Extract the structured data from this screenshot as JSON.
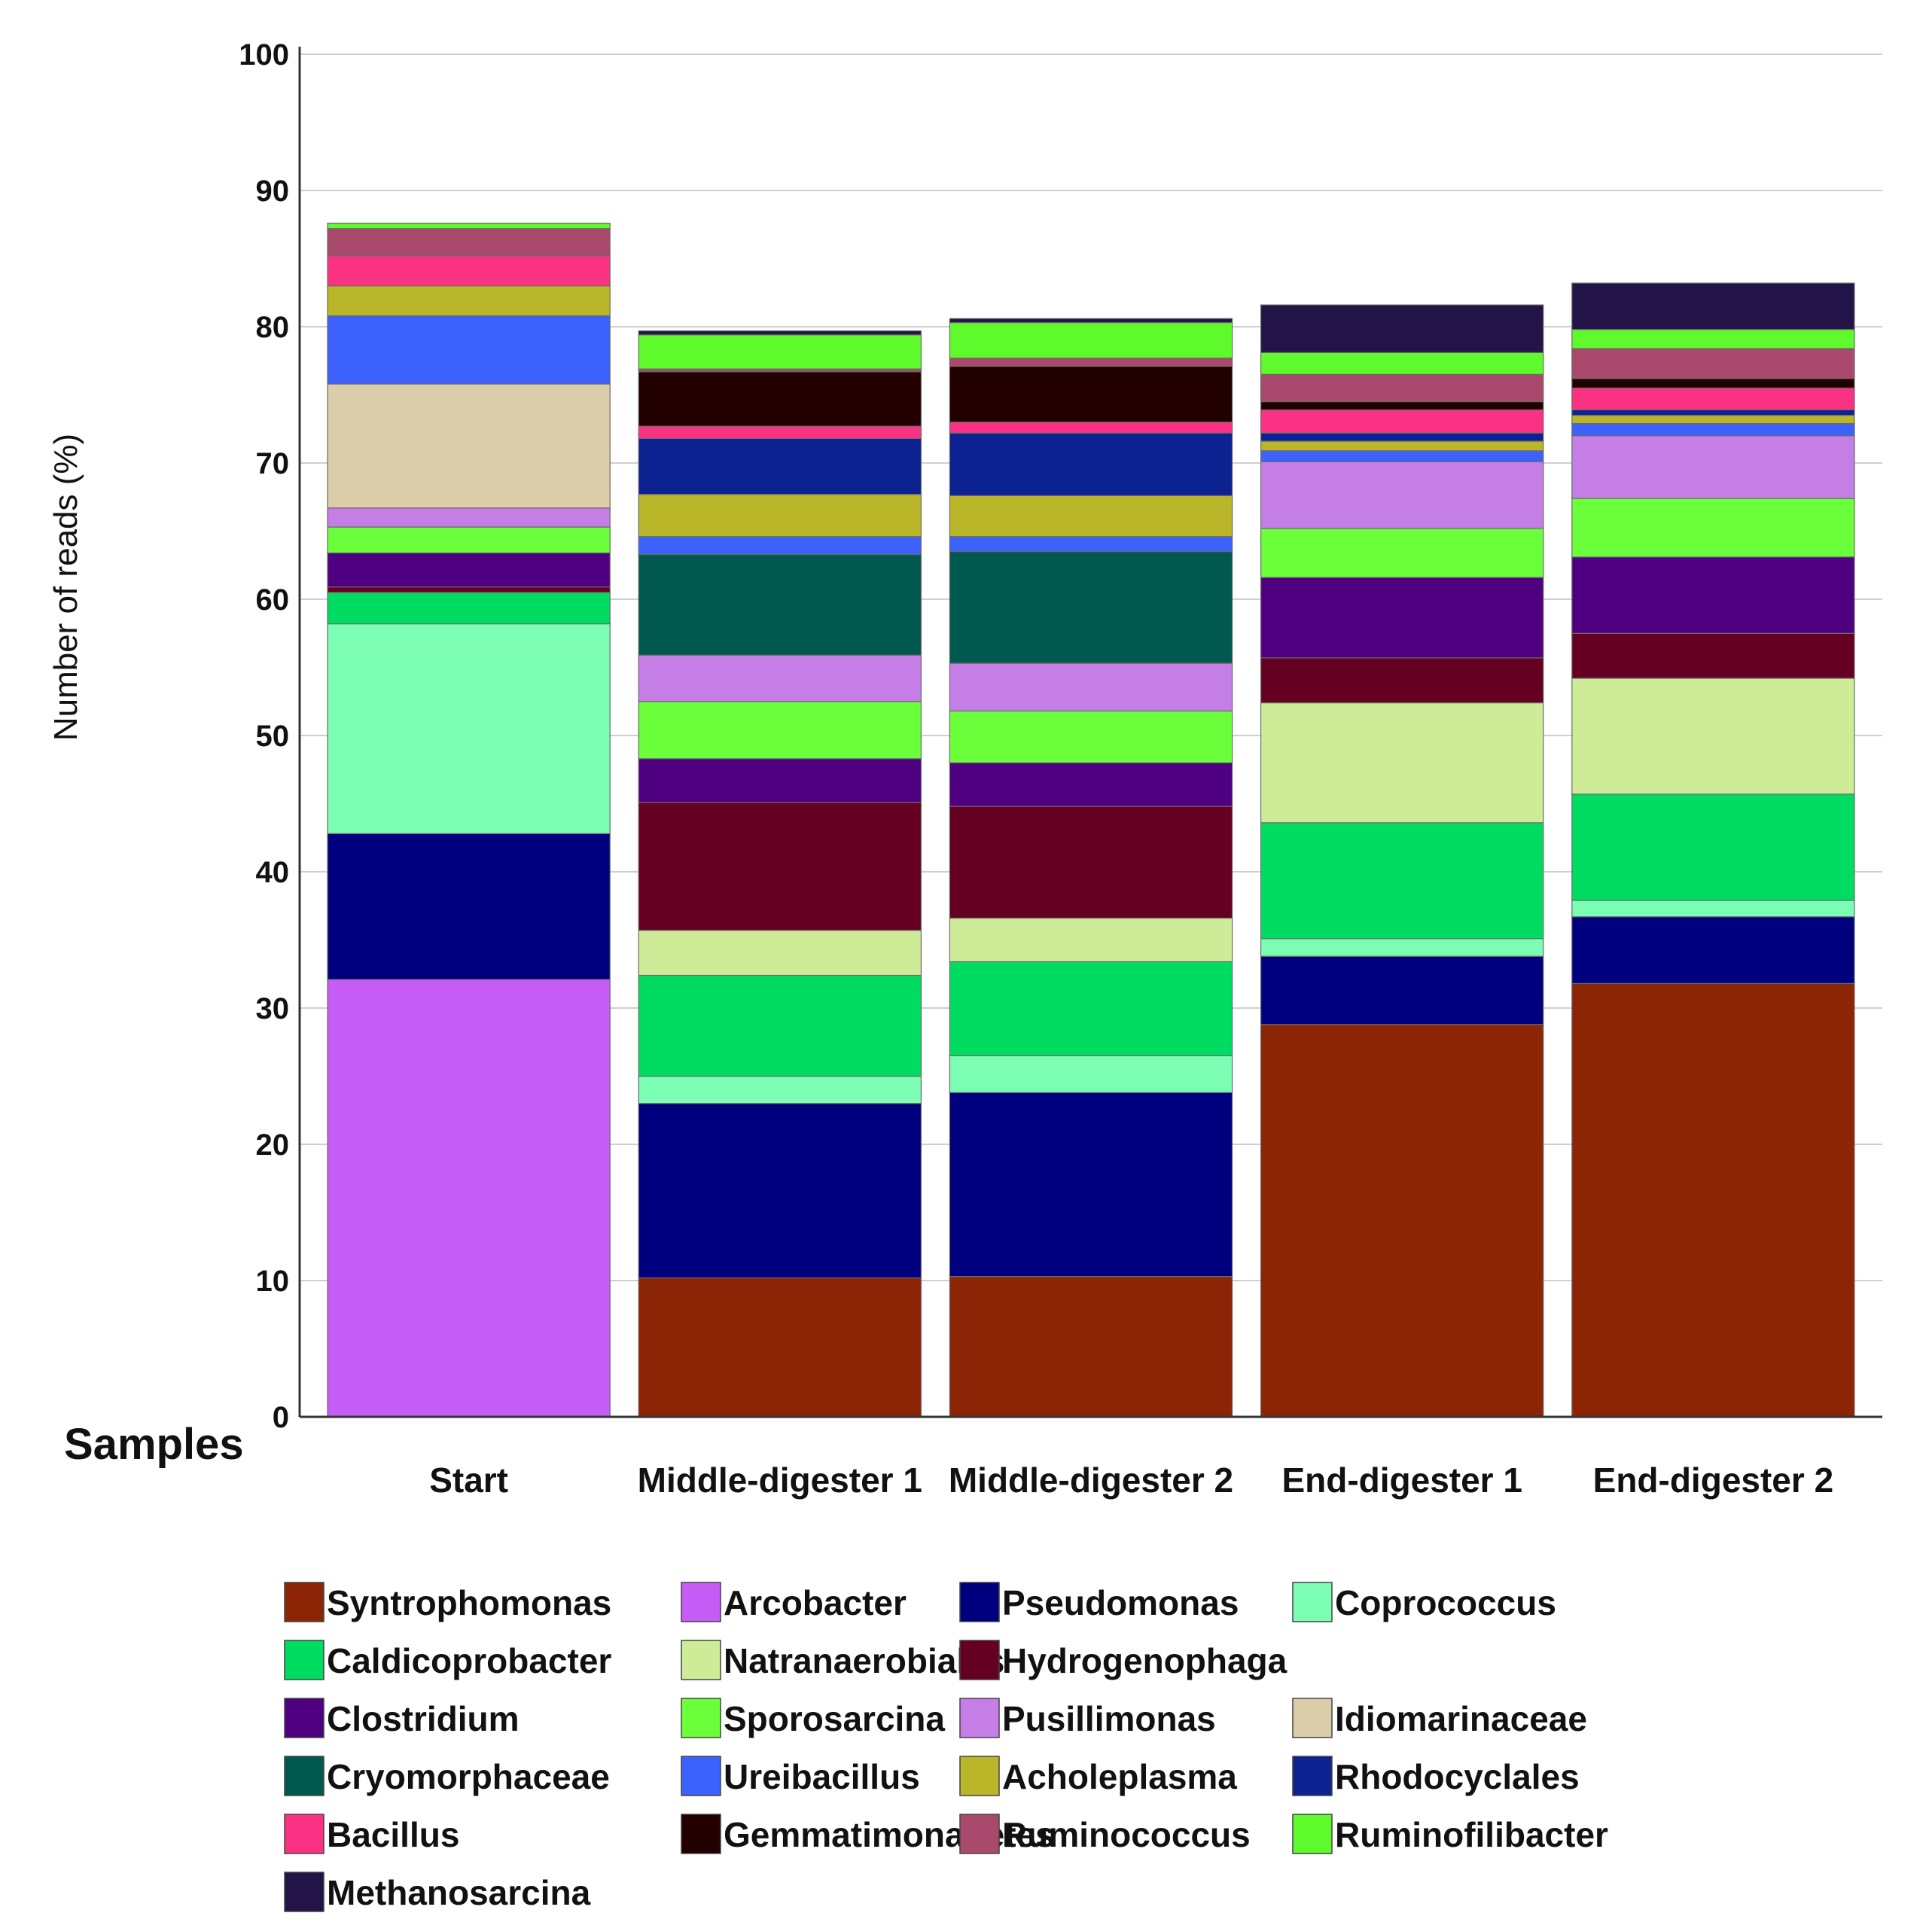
{
  "chart_data": {
    "type": "stacked-bar",
    "title": "",
    "xlabel": "Samples",
    "ylabel": "Number of reads (%)",
    "ylim": [
      0,
      100
    ],
    "yticks": [
      0,
      10,
      20,
      30,
      40,
      50,
      60,
      70,
      80,
      90,
      100
    ],
    "grid": true,
    "legend_position": "bottom",
    "categories": [
      "Start",
      "Middle-digester 1",
      "Middle-digester 2",
      "End-digester 1",
      "End-digester 2"
    ],
    "series": [
      {
        "name": "Syntrophomonas",
        "color": "#8B2505",
        "values": [
          0,
          10.2,
          10.3,
          28.8,
          31.8
        ]
      },
      {
        "name": "Arcobacter",
        "color": "#C65CF6",
        "values": [
          32.1,
          0,
          0,
          0,
          0
        ]
      },
      {
        "name": "Pseudomonas",
        "color": "#00007E",
        "values": [
          10.7,
          12.8,
          13.5,
          5.0,
          4.9
        ]
      },
      {
        "name": "Coprococcus",
        "color": "#7CFDB4",
        "values": [
          15.4,
          2.0,
          2.7,
          1.3,
          1.2
        ]
      },
      {
        "name": "Caldicoprobacter",
        "color": "#00DC62",
        "values": [
          2.3,
          7.4,
          6.9,
          8.5,
          7.8
        ]
      },
      {
        "name": "Natranaerobiales",
        "color": "#CEEC98",
        "values": [
          0,
          3.3,
          3.2,
          8.8,
          8.5
        ]
      },
      {
        "name": "Hydrogenophaga",
        "color": "#650022",
        "values": [
          0.4,
          9.4,
          8.2,
          3.3,
          3.3
        ]
      },
      {
        "name": "Clostridium",
        "color": "#4E0080",
        "values": [
          2.5,
          3.2,
          3.2,
          5.9,
          5.6
        ]
      },
      {
        "name": "Sporosarcina",
        "color": "#6BFE3A",
        "values": [
          1.9,
          4.2,
          3.8,
          3.6,
          4.3
        ]
      },
      {
        "name": "Pusillimonas",
        "color": "#C47EE6",
        "values": [
          1.4,
          3.4,
          3.5,
          4.9,
          4.6
        ]
      },
      {
        "name": "Idiomarinaceae",
        "color": "#DCCDAA",
        "values": [
          9.1,
          0,
          0,
          0,
          0
        ]
      },
      {
        "name": "Cryomorphaceae",
        "color": "#00584E",
        "values": [
          0,
          7.4,
          8.2,
          0,
          0
        ]
      },
      {
        "name": "Ureibacillus",
        "color": "#3C62FB",
        "values": [
          5.0,
          1.3,
          1.1,
          0.8,
          0.9
        ]
      },
      {
        "name": "Acholeplasma",
        "color": "#BAB62A",
        "values": [
          2.2,
          3.1,
          3.0,
          0.7,
          0.6
        ]
      },
      {
        "name": "Rhodocyclales",
        "color": "#0C2290",
        "values": [
          0,
          4.1,
          4.6,
          0.6,
          0.4
        ]
      },
      {
        "name": "Bacillus",
        "color": "#FB3283",
        "values": [
          2.2,
          0.9,
          0.8,
          1.7,
          1.6
        ]
      },
      {
        "name": "Gemmatimonadetes",
        "color": "#230000",
        "values": [
          0,
          4.0,
          4.1,
          0.6,
          0.7
        ]
      },
      {
        "name": "Ruminococcus",
        "color": "#A94A6C",
        "values": [
          2.0,
          0.2,
          0.6,
          2.0,
          2.2
        ]
      },
      {
        "name": "Ruminofilibacter",
        "color": "#5FFA2B",
        "values": [
          0.4,
          2.5,
          2.6,
          1.6,
          1.4
        ]
      },
      {
        "name": "Methanosarcina",
        "color": "#221446",
        "values": [
          0,
          0.3,
          0.3,
          3.5,
          3.4
        ]
      }
    ]
  }
}
